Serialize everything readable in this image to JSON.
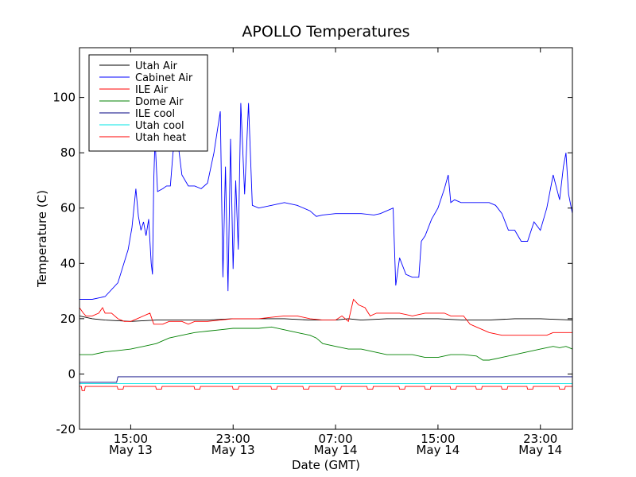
{
  "chart_data": {
    "type": "line",
    "title": "APOLLO Temperatures",
    "xlabel": "Date (GMT)",
    "ylabel": "Temperature (C)",
    "x_unit": "hours since May 13 10:00 GMT",
    "xlim": [
      0,
      38.5
    ],
    "ylim": [
      -20,
      118
    ],
    "grid": false,
    "legend_position": "top-left",
    "y_ticks": [
      -20,
      0,
      20,
      40,
      60,
      80,
      100
    ],
    "y_tick_labels": [
      "-20",
      "0",
      "20",
      "40",
      "60",
      "80",
      "100"
    ],
    "x_ticks": [
      {
        "x": 4,
        "time": "15:00",
        "date": "May 13"
      },
      {
        "x": 12,
        "time": "23:00",
        "date": "May 13"
      },
      {
        "x": 20,
        "time": "07:00",
        "date": "May 14"
      },
      {
        "x": 28,
        "time": "15:00",
        "date": "May 14"
      },
      {
        "x": 36,
        "time": "23:00",
        "date": "May 14"
      }
    ],
    "series": [
      {
        "name": "Utah Air",
        "color": "#000000",
        "points": [
          [
            0,
            21
          ],
          [
            1,
            20
          ],
          [
            2,
            19.5
          ],
          [
            4,
            19
          ],
          [
            6,
            19.5
          ],
          [
            8,
            19.5
          ],
          [
            10,
            19.5
          ],
          [
            12,
            20
          ],
          [
            14,
            20
          ],
          [
            16,
            20
          ],
          [
            18,
            19.5
          ],
          [
            20,
            19.5
          ],
          [
            21,
            20
          ],
          [
            22,
            19.5
          ],
          [
            24,
            20
          ],
          [
            26,
            20
          ],
          [
            28,
            20
          ],
          [
            30,
            19.5
          ],
          [
            32,
            19.5
          ],
          [
            34,
            20
          ],
          [
            36,
            20
          ],
          [
            38.5,
            19.5
          ]
        ]
      },
      {
        "name": "Cabinet Air",
        "color": "#0000ff",
        "points": [
          [
            0,
            27
          ],
          [
            1,
            27
          ],
          [
            2,
            28
          ],
          [
            3,
            33
          ],
          [
            3.8,
            45
          ],
          [
            4.1,
            53
          ],
          [
            4.4,
            67
          ],
          [
            4.6,
            57
          ],
          [
            4.8,
            52
          ],
          [
            5,
            55
          ],
          [
            5.2,
            50
          ],
          [
            5.4,
            56
          ],
          [
            5.6,
            40
          ],
          [
            5.7,
            36
          ],
          [
            5.8,
            70
          ],
          [
            5.9,
            85
          ],
          [
            6.1,
            66
          ],
          [
            6.5,
            67
          ],
          [
            6.8,
            68
          ],
          [
            7.1,
            68
          ],
          [
            7.3,
            80
          ],
          [
            7.6,
            87
          ],
          [
            8,
            72
          ],
          [
            8.5,
            68
          ],
          [
            9,
            68
          ],
          [
            9.5,
            67
          ],
          [
            10,
            69
          ],
          [
            10.5,
            80
          ],
          [
            11,
            95
          ],
          [
            11.2,
            35
          ],
          [
            11.4,
            75
          ],
          [
            11.6,
            30
          ],
          [
            11.8,
            85
          ],
          [
            12,
            38
          ],
          [
            12.2,
            70
          ],
          [
            12.4,
            45
          ],
          [
            12.6,
            98
          ],
          [
            12.9,
            65
          ],
          [
            13.2,
            98
          ],
          [
            13.5,
            61
          ],
          [
            14,
            60
          ],
          [
            15,
            61
          ],
          [
            16,
            62
          ],
          [
            17,
            61
          ],
          [
            18,
            59
          ],
          [
            18.5,
            57
          ],
          [
            19,
            57.5
          ],
          [
            20,
            58
          ],
          [
            21,
            58
          ],
          [
            22,
            58
          ],
          [
            23,
            57.5
          ],
          [
            23.5,
            58
          ],
          [
            24.5,
            60
          ],
          [
            24.7,
            32
          ],
          [
            25,
            42
          ],
          [
            25.5,
            36
          ],
          [
            26,
            35
          ],
          [
            26.5,
            35
          ],
          [
            26.7,
            48
          ],
          [
            27,
            50
          ],
          [
            27.5,
            56
          ],
          [
            28,
            60
          ],
          [
            28.5,
            67
          ],
          [
            28.8,
            72
          ],
          [
            29,
            62
          ],
          [
            29.3,
            63
          ],
          [
            29.8,
            62
          ],
          [
            30.5,
            62
          ],
          [
            31.5,
            62
          ],
          [
            32,
            62
          ],
          [
            32.5,
            61
          ],
          [
            33,
            58
          ],
          [
            33.5,
            52
          ],
          [
            34,
            52
          ],
          [
            34.5,
            48
          ],
          [
            35,
            48
          ],
          [
            35.5,
            55
          ],
          [
            36,
            52
          ],
          [
            36.5,
            60
          ],
          [
            37,
            72
          ],
          [
            37.5,
            63
          ],
          [
            37.8,
            75
          ],
          [
            38,
            80
          ],
          [
            38.2,
            65
          ],
          [
            38.5,
            58
          ]
        ]
      },
      {
        "name": "ILE Air",
        "color": "#ff0000",
        "points": [
          [
            0,
            24
          ],
          [
            0.3,
            22
          ],
          [
            0.5,
            21
          ],
          [
            1,
            21
          ],
          [
            1.5,
            22
          ],
          [
            1.8,
            24
          ],
          [
            2,
            22
          ],
          [
            2.5,
            22
          ],
          [
            3,
            20
          ],
          [
            3.5,
            19
          ],
          [
            4,
            19
          ],
          [
            4.5,
            20
          ],
          [
            5,
            21
          ],
          [
            5.5,
            22
          ],
          [
            5.8,
            18
          ],
          [
            6.5,
            18
          ],
          [
            7,
            19
          ],
          [
            8,
            19
          ],
          [
            8.5,
            18
          ],
          [
            9,
            19
          ],
          [
            10,
            19
          ],
          [
            11,
            19.5
          ],
          [
            12,
            20
          ],
          [
            13,
            20
          ],
          [
            14,
            20
          ],
          [
            15,
            20.5
          ],
          [
            16,
            21
          ],
          [
            17,
            21
          ],
          [
            18,
            20
          ],
          [
            19,
            19.5
          ],
          [
            20,
            19.5
          ],
          [
            20.5,
            21
          ],
          [
            21,
            19
          ],
          [
            21.4,
            27
          ],
          [
            21.8,
            25
          ],
          [
            22.3,
            24
          ],
          [
            22.7,
            21
          ],
          [
            23.2,
            22
          ],
          [
            24,
            22
          ],
          [
            25,
            22
          ],
          [
            26,
            21
          ],
          [
            27,
            22
          ],
          [
            28,
            22
          ],
          [
            28.5,
            22
          ],
          [
            29,
            21
          ],
          [
            30,
            21
          ],
          [
            30.5,
            18
          ],
          [
            31,
            17
          ],
          [
            32,
            15
          ],
          [
            33,
            14
          ],
          [
            34,
            14
          ],
          [
            35,
            14
          ],
          [
            36,
            14
          ],
          [
            36.5,
            14
          ],
          [
            37,
            15
          ],
          [
            38,
            15
          ],
          [
            38.5,
            15
          ]
        ]
      },
      {
        "name": "Dome Air",
        "color": "#008000",
        "points": [
          [
            0,
            7
          ],
          [
            1,
            7
          ],
          [
            2,
            8
          ],
          [
            3,
            8.5
          ],
          [
            4,
            9
          ],
          [
            5,
            10
          ],
          [
            6,
            11
          ],
          [
            7,
            13
          ],
          [
            8,
            14
          ],
          [
            9,
            15
          ],
          [
            10,
            15.5
          ],
          [
            11,
            16
          ],
          [
            12,
            16.5
          ],
          [
            13,
            16.5
          ],
          [
            14,
            16.5
          ],
          [
            15,
            17
          ],
          [
            16,
            16
          ],
          [
            17,
            15
          ],
          [
            18,
            14
          ],
          [
            18.5,
            13
          ],
          [
            19,
            11
          ],
          [
            20,
            10
          ],
          [
            21,
            9
          ],
          [
            22,
            9
          ],
          [
            23,
            8
          ],
          [
            24,
            7
          ],
          [
            25,
            7
          ],
          [
            26,
            7
          ],
          [
            27,
            6
          ],
          [
            28,
            6
          ],
          [
            29,
            7
          ],
          [
            30,
            7
          ],
          [
            31,
            6.5
          ],
          [
            31.5,
            5
          ],
          [
            32,
            5
          ],
          [
            33,
            6
          ],
          [
            34,
            7
          ],
          [
            35,
            8
          ],
          [
            36,
            9
          ],
          [
            37,
            10
          ],
          [
            37.5,
            9.5
          ],
          [
            38,
            10
          ],
          [
            38.5,
            9
          ]
        ]
      },
      {
        "name": "ILE cool",
        "color": "#000080",
        "points": [
          [
            0,
            -3
          ],
          [
            2.9,
            -3
          ],
          [
            3,
            -1
          ],
          [
            38.5,
            -1
          ]
        ]
      },
      {
        "name": "Utah cool",
        "color": "#00e5e5",
        "points": [
          [
            0,
            -3.5
          ],
          [
            38.5,
            -3.5
          ]
        ]
      },
      {
        "name": "Utah heat",
        "color": "#ff0000",
        "points": [
          [
            0,
            -4.5
          ],
          [
            0.15,
            -4.5
          ],
          [
            0.2,
            -6
          ],
          [
            0.4,
            -6
          ],
          [
            0.45,
            -4.5
          ],
          [
            1,
            -4.5
          ],
          [
            38.5,
            -4.5
          ]
        ]
      }
    ],
    "utah_heat_pulses": [
      3,
      6,
      9,
      12,
      15,
      17.5,
      20,
      22.5,
      25,
      27,
      29,
      31,
      33,
      35,
      37.5
    ]
  }
}
